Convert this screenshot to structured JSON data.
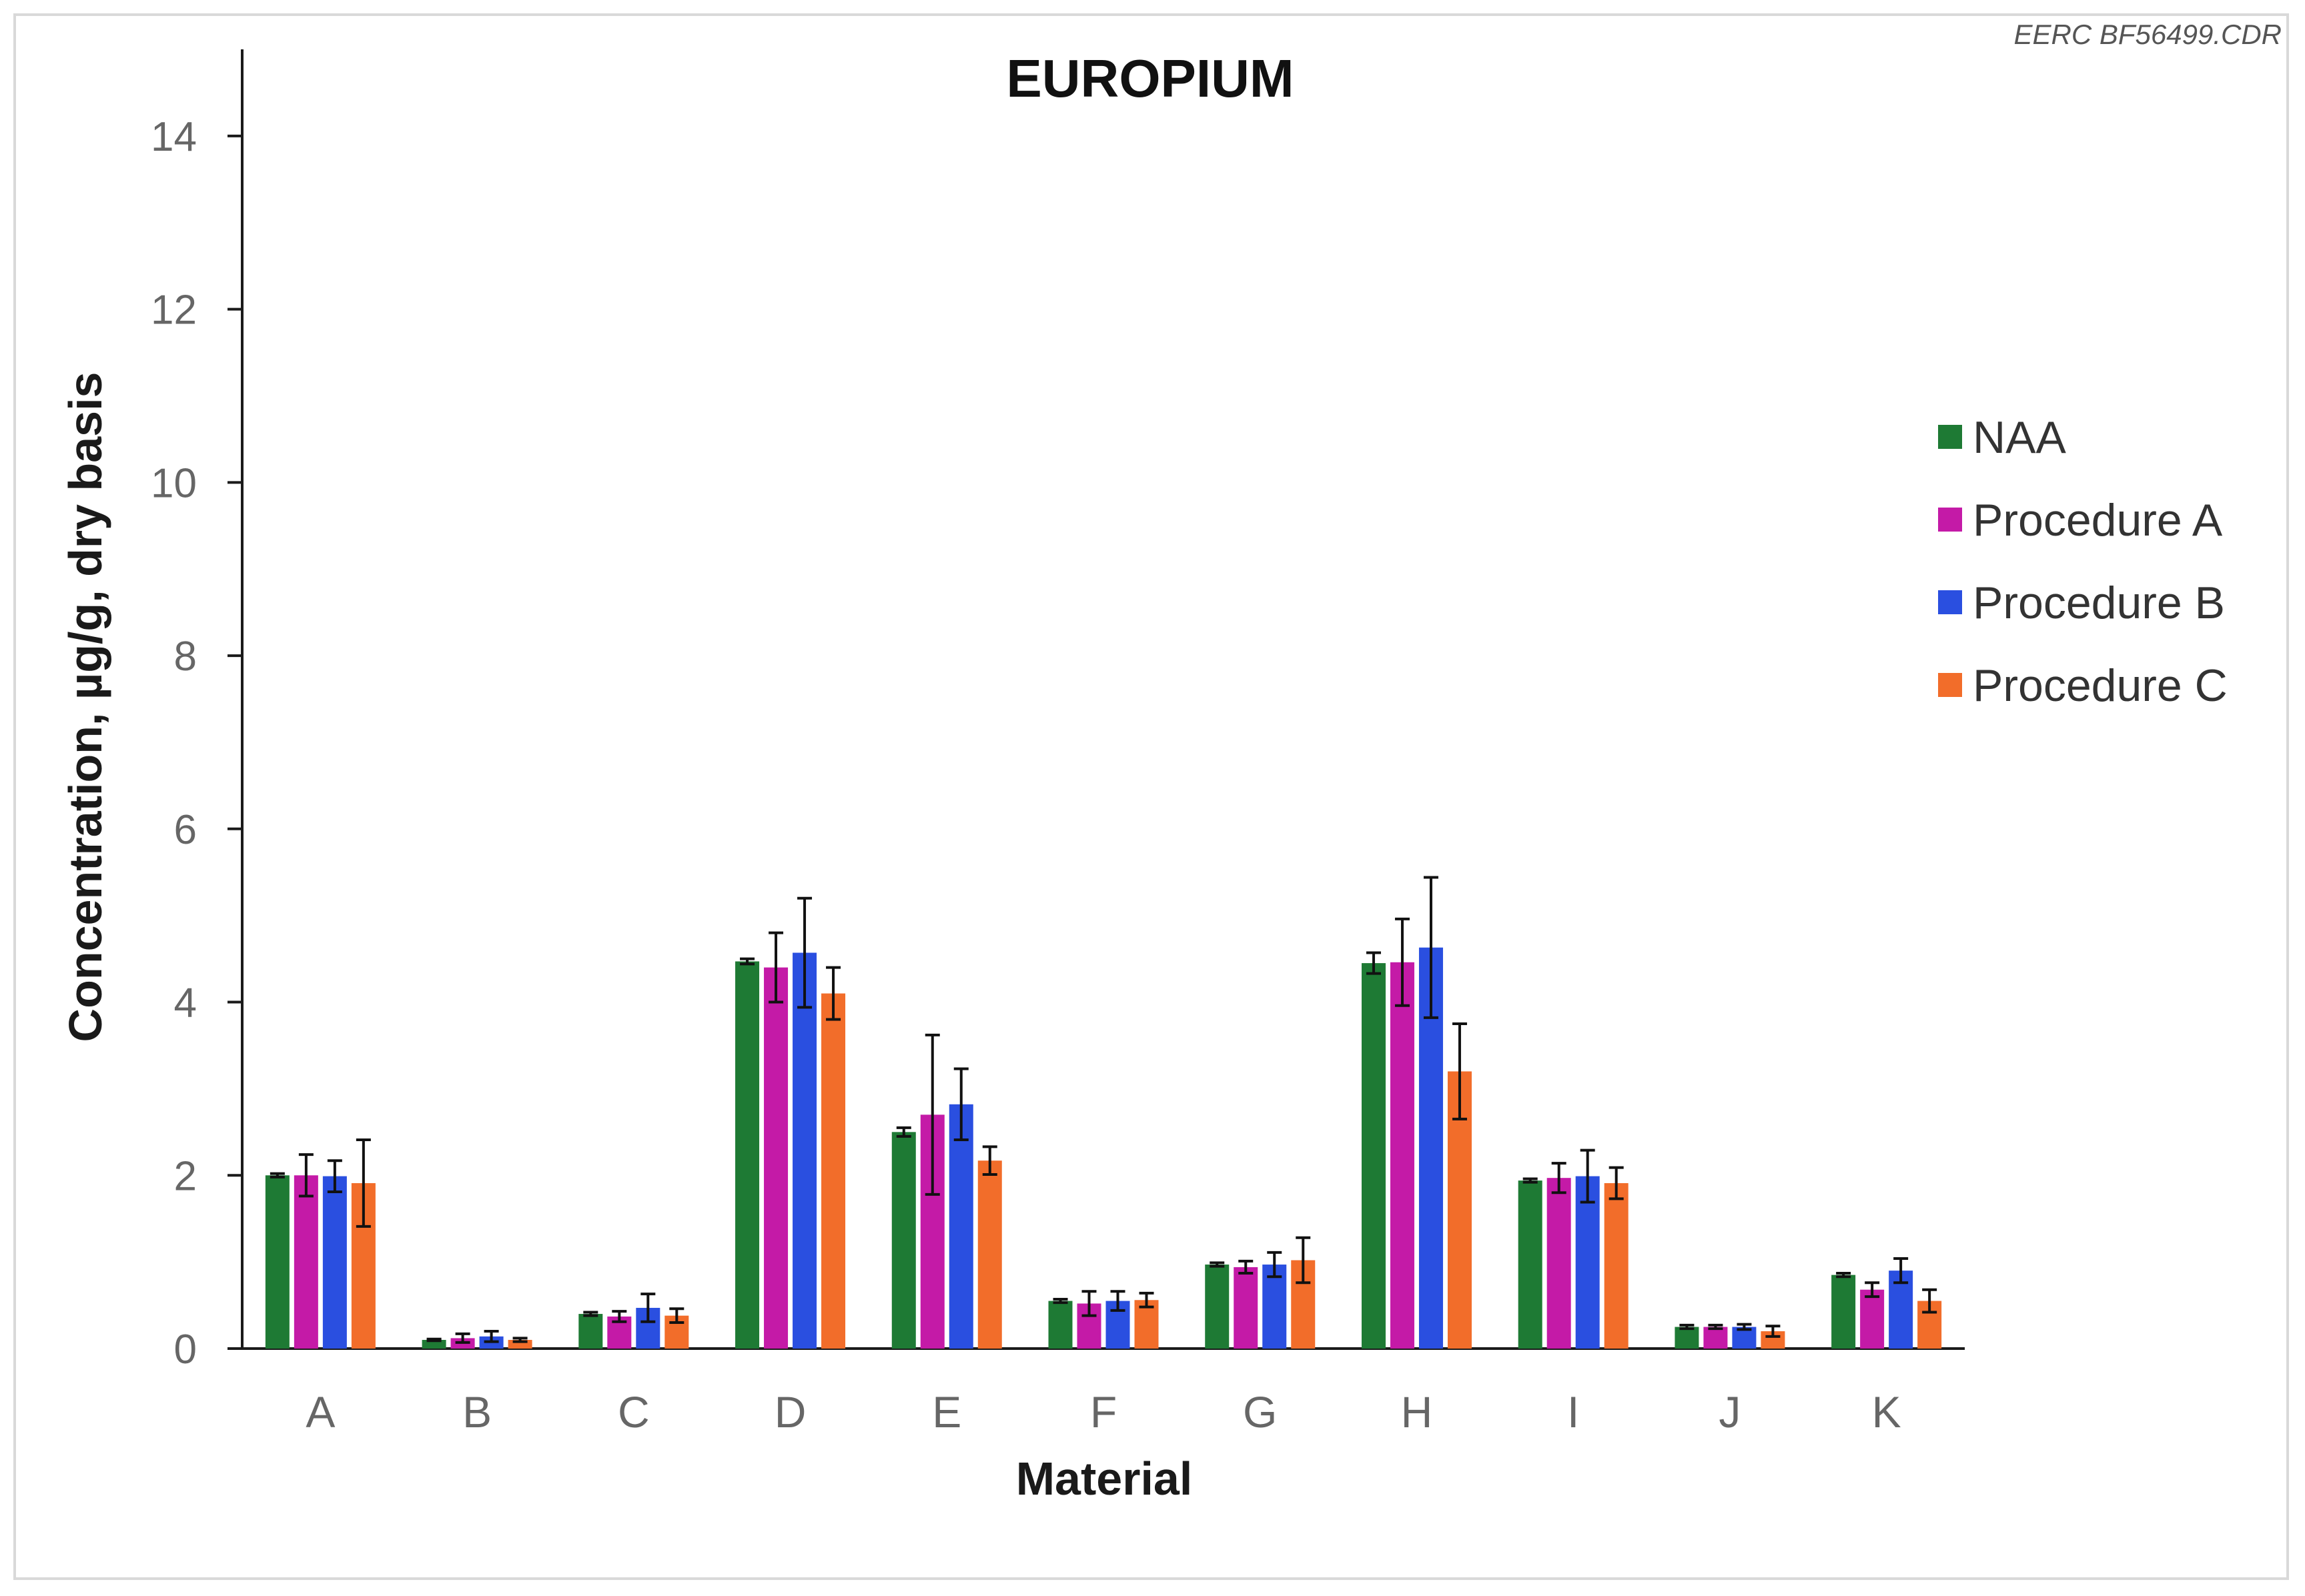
{
  "figure_id": "EERC BF56499.CDR",
  "chart_data": {
    "type": "bar",
    "title": "EUROPIUM",
    "xlabel": "Material",
    "ylabel": "Concentration, µg/g, dry basis",
    "ylim": [
      0,
      15
    ],
    "yticks": [
      0,
      2,
      4,
      6,
      8,
      10,
      12,
      14
    ],
    "grid": false,
    "legend_position": "right",
    "categories": [
      "A",
      "B",
      "C",
      "D",
      "E",
      "F",
      "G",
      "H",
      "I",
      "J",
      "K"
    ],
    "series": [
      {
        "name": "NAA",
        "color": "#1e7a34",
        "values": [
          2.0,
          0.1,
          0.4,
          4.47,
          2.5,
          0.55,
          0.97,
          4.45,
          1.94,
          0.25,
          0.85
        ],
        "errors": [
          0.02,
          0.01,
          0.02,
          0.03,
          0.05,
          0.02,
          0.02,
          0.12,
          0.02,
          0.02,
          0.02
        ]
      },
      {
        "name": "Procedure A",
        "color": "#c41aa7",
        "values": [
          2.0,
          0.12,
          0.37,
          4.4,
          2.7,
          0.52,
          0.94,
          4.46,
          1.97,
          0.25,
          0.68
        ],
        "errors": [
          0.24,
          0.05,
          0.06,
          0.4,
          0.92,
          0.14,
          0.07,
          0.5,
          0.17,
          0.02,
          0.08
        ]
      },
      {
        "name": "Procedure B",
        "color": "#2a4fe0",
        "values": [
          1.99,
          0.14,
          0.47,
          4.57,
          2.82,
          0.55,
          0.97,
          4.63,
          1.99,
          0.25,
          0.9
        ],
        "errors": [
          0.18,
          0.06,
          0.16,
          0.63,
          0.41,
          0.11,
          0.14,
          0.81,
          0.3,
          0.03,
          0.14
        ]
      },
      {
        "name": "Procedure C",
        "color": "#f26d2a",
        "values": [
          1.91,
          0.1,
          0.38,
          4.1,
          2.17,
          0.56,
          1.02,
          3.2,
          1.91,
          0.2,
          0.55
        ],
        "errors": [
          0.5,
          0.02,
          0.08,
          0.3,
          0.16,
          0.08,
          0.26,
          0.55,
          0.18,
          0.06,
          0.13
        ]
      }
    ]
  }
}
